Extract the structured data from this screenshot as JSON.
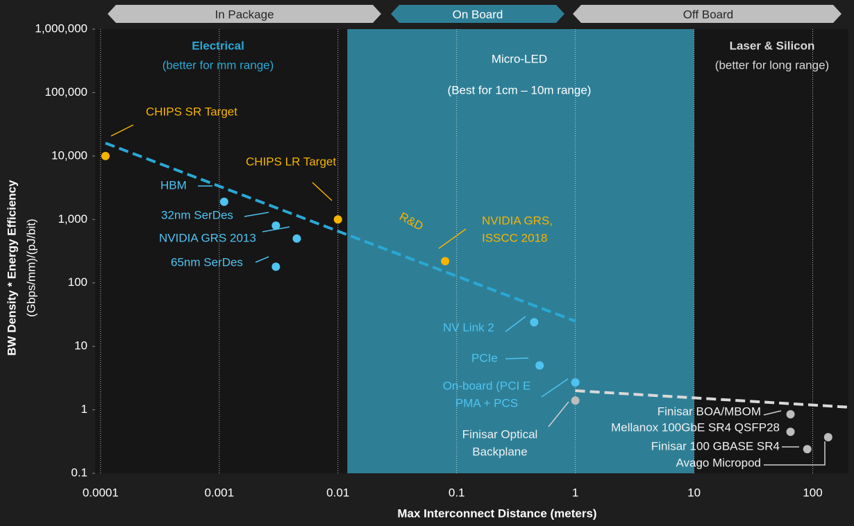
{
  "chart_data": {
    "type": "scatter",
    "xlabel": "Max Interconnect Distance (meters)",
    "ylabel": [
      "BW Density * Energy Efficiency",
      "(Gbps/mm)/(pJ/bit)"
    ],
    "xscale": "log",
    "yscale": "log",
    "xlim": [
      9e-05,
      200
    ],
    "ylim": [
      0.1,
      1000000
    ],
    "xticks": [
      0.0001,
      0.001,
      0.01,
      0.1,
      1,
      10,
      100
    ],
    "yticks": [
      0.1,
      1,
      10,
      100,
      {
        "value": 1000,
        "label": "1,000"
      },
      {
        "value": 10000,
        "label": "10,000"
      },
      {
        "value": 100000,
        "label": "100,000"
      },
      {
        "value": 1000000,
        "label": "1,000,000"
      }
    ],
    "grid": true,
    "zones": [
      "In Package",
      "On Board",
      "Off Board"
    ],
    "regions": [
      {
        "name": "Electrical",
        "note": "(better for mm range)"
      },
      {
        "name": "Micro-LED",
        "note": "(Best for 1cm – 10m range)",
        "x": [
          0.012,
          10
        ],
        "color": "#2e7f96"
      },
      {
        "name": "Laser & Silicon",
        "note": "(better for long range)"
      }
    ],
    "trends": [
      {
        "label": "R&D",
        "color": "#2aa8d4",
        "x": [
          0.00011,
          1
        ],
        "y": [
          16000,
          25
        ]
      },
      {
        "color": "#d9d9d9",
        "x": [
          1,
          200
        ],
        "y": [
          2,
          1.1
        ]
      }
    ],
    "points": [
      {
        "label": [
          "CHIPS SR Target"
        ],
        "x": 0.00011,
        "y": 10000,
        "color": "#f5b400"
      },
      {
        "label": [
          "CHIPS LR Target"
        ],
        "x": 0.01,
        "y": 1000,
        "color": "#f5b400"
      },
      {
        "label": [
          "HBM"
        ],
        "x": 0.0011,
        "y": 1900,
        "color": "#4fc3f0"
      },
      {
        "label": [
          "32nm SerDes"
        ],
        "x": 0.003,
        "y": 800,
        "color": "#4fc3f0"
      },
      {
        "label": [
          "NVIDIA GRS 2013"
        ],
        "x": 0.0045,
        "y": 500,
        "color": "#4fc3f0"
      },
      {
        "label": [
          "65nm SerDes"
        ],
        "x": 0.003,
        "y": 180,
        "color": "#4fc3f0"
      },
      {
        "label": [
          "NVIDIA GRS,",
          "ISSCC 2018"
        ],
        "x": 0.08,
        "y": 220,
        "color": "#f5b400"
      },
      {
        "label": [
          "NV Link 2"
        ],
        "x": 0.45,
        "y": 24,
        "color": "#4fc3f0"
      },
      {
        "label": [
          "PCIe"
        ],
        "x": 0.5,
        "y": 5,
        "color": "#4fc3f0"
      },
      {
        "label": [
          "On-board (PCI E",
          "PMA + PCS"
        ],
        "x": 1,
        "y": 2.7,
        "color": "#4fc3f0"
      },
      {
        "label": [
          "Finisar Optical",
          "Backplane"
        ],
        "x": 1,
        "y": 1.4,
        "color": "#bdbdbd"
      },
      {
        "label": [
          "Finisar BOA/MBOM"
        ],
        "x": 65,
        "y": 0.85,
        "color": "#bdbdbd"
      },
      {
        "label": [
          "Mellanox 100GbE SR4 QSFP28"
        ],
        "x": 65,
        "y": 0.45,
        "color": "#bdbdbd"
      },
      {
        "label": [
          "Finisar 100 GBASE SR4"
        ],
        "x": 90,
        "y": 0.24,
        "color": "#bdbdbd"
      },
      {
        "label": [
          "Avago Micropod"
        ],
        "x": 135,
        "y": 0.37,
        "color": "#bdbdbd"
      }
    ]
  }
}
